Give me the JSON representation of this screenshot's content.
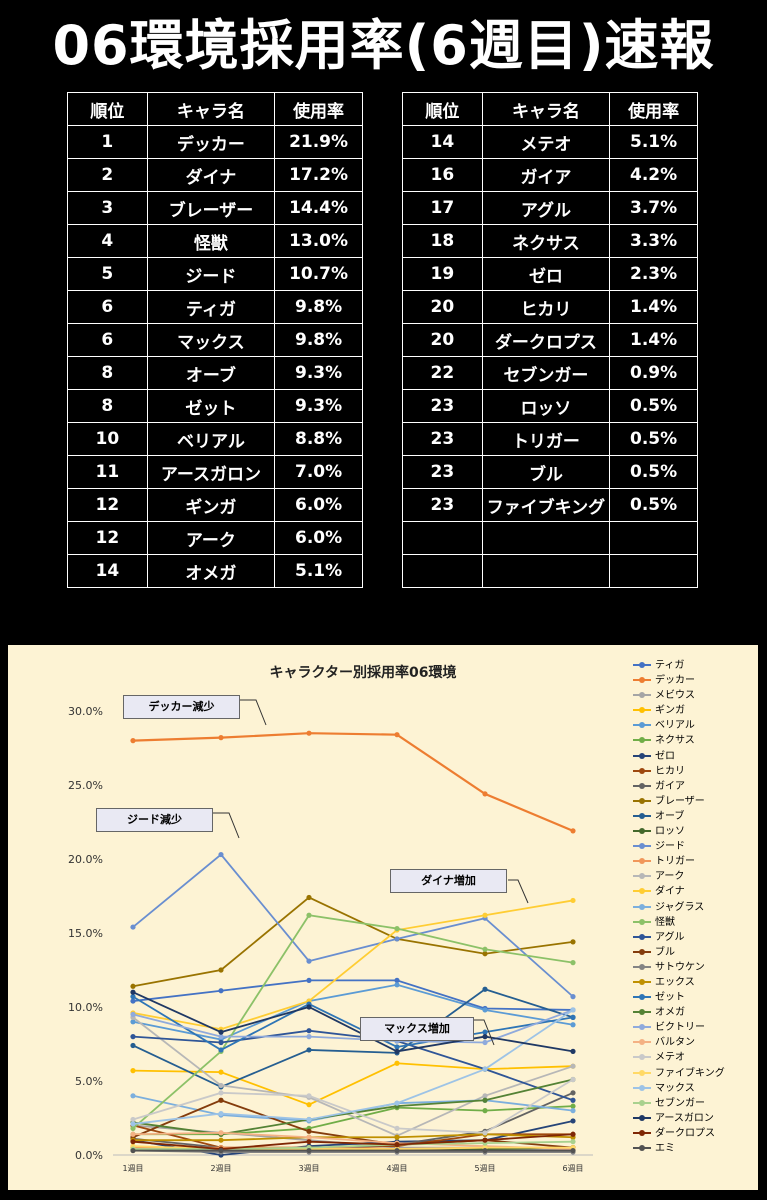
{
  "title": "06環境採用率(6週目)速報",
  "table": {
    "headers": [
      "順位",
      "キャラ名",
      "使用率"
    ],
    "left_rows": [
      [
        "1",
        "デッカー",
        "21.9%"
      ],
      [
        "2",
        "ダイナ",
        "17.2%"
      ],
      [
        "3",
        "ブレーザー",
        "14.4%"
      ],
      [
        "4",
        "怪獣",
        "13.0%"
      ],
      [
        "5",
        "ジード",
        "10.7%"
      ],
      [
        "6",
        "ティガ",
        "9.8%"
      ],
      [
        "6",
        "マックス",
        "9.8%"
      ],
      [
        "8",
        "オーブ",
        "9.3%"
      ],
      [
        "8",
        "ゼット",
        "9.3%"
      ],
      [
        "10",
        "ベリアル",
        "8.8%"
      ],
      [
        "11",
        "アースガロン",
        "7.0%"
      ],
      [
        "12",
        "ギンガ",
        "6.0%"
      ],
      [
        "12",
        "アーク",
        "6.0%"
      ],
      [
        "14",
        "オメガ",
        "5.1%"
      ]
    ],
    "right_rows": [
      [
        "14",
        "メテオ",
        "5.1%"
      ],
      [
        "16",
        "ガイア",
        "4.2%"
      ],
      [
        "17",
        "アグル",
        "3.7%"
      ],
      [
        "18",
        "ネクサス",
        "3.3%"
      ],
      [
        "19",
        "ゼロ",
        "2.3%"
      ],
      [
        "20",
        "ヒカリ",
        "1.4%"
      ],
      [
        "20",
        "ダークロプス",
        "1.4%"
      ],
      [
        "22",
        "セブンガー",
        "0.9%"
      ],
      [
        "23",
        "ロッソ",
        "0.5%"
      ],
      [
        "23",
        "トリガー",
        "0.5%"
      ],
      [
        "23",
        "ブル",
        "0.5%"
      ],
      [
        "23",
        "ファイブキング",
        "0.5%"
      ],
      [
        "",
        "",
        ""
      ],
      [
        "",
        "",
        ""
      ]
    ]
  },
  "callouts": {
    "decker": "デッカー減少",
    "geed": "ジード減少",
    "dyna": "ダイナ増加",
    "max": "マックス増加"
  },
  "chart_data": {
    "type": "line",
    "title": "キャラクター別採用率06環境",
    "xlabel": "",
    "ylabel": "",
    "categories": [
      "1週目",
      "2週目",
      "3週目",
      "4週目",
      "5週目",
      "6週目"
    ],
    "ylim": [
      0,
      30
    ],
    "yticks": [
      "0.0%",
      "5.0%",
      "10.0%",
      "15.0%",
      "20.0%",
      "25.0%",
      "30.0%"
    ],
    "grid": false,
    "legend_position": "right",
    "series": [
      {
        "name": "ティガ",
        "color": "#4472c4",
        "values": [
          10.4,
          11.1,
          11.8,
          11.8,
          9.9,
          9.8
        ]
      },
      {
        "name": "デッカー",
        "color": "#ed7d31",
        "values": [
          28.0,
          28.2,
          28.5,
          28.4,
          24.4,
          21.9
        ]
      },
      {
        "name": "メビウス",
        "color": "#a5a5a5",
        "values": [
          2.0,
          1.5,
          1.0,
          0.5,
          0.5,
          0.3
        ]
      },
      {
        "name": "ギンガ",
        "color": "#ffc000",
        "values": [
          5.7,
          5.6,
          3.4,
          6.2,
          5.8,
          6.0
        ]
      },
      {
        "name": "ベリアル",
        "color": "#5b9bd5",
        "values": [
          9.0,
          7.8,
          10.4,
          11.5,
          9.8,
          8.8
        ]
      },
      {
        "name": "ネクサス",
        "color": "#70ad47",
        "values": [
          1.4,
          1.4,
          1.8,
          3.2,
          3.0,
          3.3
        ]
      },
      {
        "name": "ゼロ",
        "color": "#264478",
        "values": [
          1.0,
          0.0,
          0.6,
          0.9,
          1.0,
          2.3
        ]
      },
      {
        "name": "ヒカリ",
        "color": "#9e480e",
        "values": [
          2.0,
          0.5,
          0.5,
          0.6,
          1.4,
          1.4
        ]
      },
      {
        "name": "ガイア",
        "color": "#636363",
        "values": [
          1.1,
          0.5,
          0.4,
          0.7,
          1.6,
          4.2
        ]
      },
      {
        "name": "ブレーザー",
        "color": "#997300",
        "values": [
          11.4,
          12.5,
          17.4,
          14.6,
          13.6,
          14.4
        ]
      },
      {
        "name": "オーブ",
        "color": "#255e91",
        "values": [
          7.4,
          4.6,
          7.1,
          6.9,
          11.2,
          9.3
        ]
      },
      {
        "name": "ロッソ",
        "color": "#43682b",
        "values": [
          0.4,
          0.3,
          0.3,
          0.3,
          0.4,
          0.5
        ]
      },
      {
        "name": "ジード",
        "color": "#698ed0",
        "values": [
          15.4,
          20.3,
          13.1,
          14.6,
          16.0,
          10.7
        ]
      },
      {
        "name": "トリガー",
        "color": "#f1975a",
        "values": [
          0.5,
          0.5,
          0.5,
          0.4,
          0.5,
          0.5
        ]
      },
      {
        "name": "アーク",
        "color": "#b7b7b7",
        "values": [
          9.3,
          4.7,
          3.9,
          1.3,
          4.0,
          6.0
        ]
      },
      {
        "name": "ダイナ",
        "color": "#ffcd33",
        "values": [
          9.6,
          8.5,
          10.4,
          15.2,
          16.2,
          17.2
        ]
      },
      {
        "name": "ジャグラス",
        "color": "#7cafdd",
        "values": [
          4.0,
          2.7,
          2.3,
          3.5,
          3.7,
          3.0
        ]
      },
      {
        "name": "怪獣",
        "color": "#8cc168",
        "values": [
          1.8,
          7.0,
          16.2,
          15.3,
          13.9,
          13.0
        ]
      },
      {
        "name": "アグル",
        "color": "#2f5597",
        "values": [
          8.0,
          7.6,
          8.4,
          7.7,
          5.8,
          3.7
        ]
      },
      {
        "name": "ブル",
        "color": "#843c0c",
        "values": [
          1.2,
          3.7,
          1.6,
          0.7,
          1.0,
          0.5
        ]
      },
      {
        "name": "サトウケン",
        "color": "#848484",
        "values": [
          0.3,
          0.2,
          0.2,
          0.2,
          0.2,
          0.2
        ]
      },
      {
        "name": "エックス",
        "color": "#bf9000",
        "values": [
          1.0,
          1.0,
          1.2,
          1.2,
          1.4,
          1.2
        ]
      },
      {
        "name": "ゼット",
        "color": "#2e75b6",
        "values": [
          10.7,
          7.1,
          10.2,
          7.3,
          8.3,
          9.3
        ]
      },
      {
        "name": "オメガ",
        "color": "#548235",
        "values": [
          2.2,
          1.4,
          2.4,
          3.3,
          3.7,
          5.1
        ]
      },
      {
        "name": "ビクトリー",
        "color": "#8faadc",
        "values": [
          9.5,
          8.0,
          8.0,
          7.7,
          7.6,
          9.8
        ]
      },
      {
        "name": "バルタン",
        "color": "#f4b183",
        "values": [
          1.4,
          1.5,
          1.2,
          0.8,
          0.6,
          0.4
        ]
      },
      {
        "name": "メテオ",
        "color": "#c9c9c9",
        "values": [
          2.4,
          4.2,
          4.0,
          1.8,
          1.5,
          5.1
        ]
      },
      {
        "name": "ファイブキング",
        "color": "#ffd966",
        "values": [
          0.6,
          0.4,
          0.4,
          0.4,
          0.5,
          0.5
        ]
      },
      {
        "name": "マックス",
        "color": "#9dc3e6",
        "values": [
          2.1,
          2.8,
          2.4,
          3.5,
          5.8,
          9.8
        ]
      },
      {
        "name": "セブンガー",
        "color": "#a9d18e",
        "values": [
          0.4,
          0.4,
          0.5,
          0.7,
          0.8,
          0.9
        ]
      },
      {
        "name": "アースガロン",
        "color": "#1f3864",
        "values": [
          11.0,
          8.3,
          10.0,
          7.0,
          8.0,
          7.0
        ]
      },
      {
        "name": "ダークロプス",
        "color": "#7f2704",
        "values": [
          0.9,
          0.4,
          0.9,
          0.7,
          1.0,
          1.4
        ]
      },
      {
        "name": "エミ",
        "color": "#525252",
        "values": [
          0.3,
          0.3,
          0.3,
          0.3,
          0.3,
          0.3
        ]
      }
    ]
  }
}
